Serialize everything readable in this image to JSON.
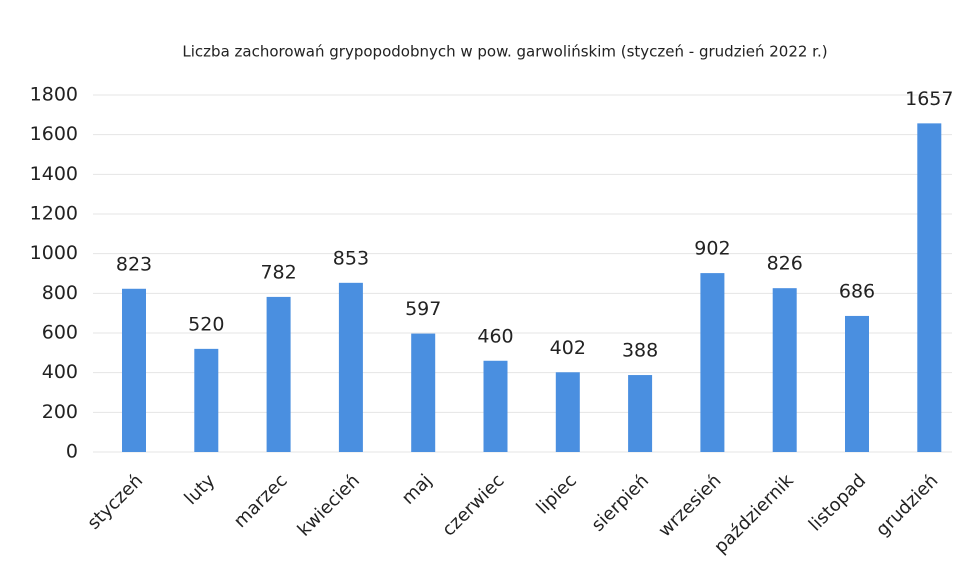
{
  "chart_data": {
    "type": "bar",
    "title": "Liczba zachorowań grypopodobnych w pow. garwolińskim (styczeń - grudzień 2022 r.)",
    "categories": [
      "styczeń",
      "luty",
      "marzec",
      "kwiecień",
      "maj",
      "czerwiec",
      "lipiec",
      "sierpień",
      "wrzesień",
      "październik",
      "listopad",
      "grudzień"
    ],
    "values": [
      823,
      520,
      782,
      853,
      597,
      460,
      402,
      388,
      902,
      826,
      686,
      1657
    ],
    "color": "#4a8fe0",
    "ylim": [
      0,
      1800
    ],
    "yticks": [
      0,
      200,
      400,
      600,
      800,
      1000,
      1200,
      1400,
      1600,
      1800
    ],
    "grid": true
  }
}
